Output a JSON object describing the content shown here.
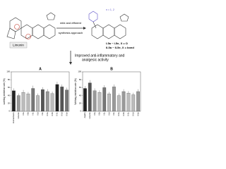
{
  "scheme": {
    "left_label": "Limonin",
    "arrow_top": "mild and efficient",
    "arrow_bottom": "synthesis approach",
    "n_label": "n = 1, 2",
    "series1": "I-5a ~ I-5e, X = O",
    "series2": "II-5a ~ II-5e, X = bond",
    "result_line1": "Improved anti-inflammatory and",
    "result_line2": "analgesic activity"
  },
  "chart_data": [
    {
      "type": "bar",
      "title": "A",
      "y_label": "swelling inhibition rate (%)",
      "categories": [
        "Indomethacin",
        "Limonin",
        "I-5a",
        "I-5b",
        "I-5c",
        "I-5d",
        "I-5e",
        "II-5a",
        "II-5b",
        "II-5c",
        "II-5d",
        "II-5e"
      ],
      "values": [
        52,
        40,
        48,
        44,
        58,
        40,
        55,
        50,
        45,
        68,
        62,
        54
      ],
      "errors": [
        6,
        5,
        6,
        5,
        7,
        5,
        6,
        6,
        5,
        7,
        6,
        6
      ],
      "colors": [
        "#222222",
        "#999999",
        "#bbbbbb",
        "#bbbbbb",
        "#777777",
        "#bbbbbb",
        "#555555",
        "#999999",
        "#bbbbbb",
        "#222222",
        "#555555",
        "#777777"
      ],
      "ylim": [
        0,
        100
      ],
      "yticks": [
        0,
        20,
        40,
        60,
        80,
        100
      ]
    },
    {
      "type": "bar",
      "title": "B",
      "y_label": "Writhing inhibition rate (%)",
      "categories": [
        "Aspirin",
        "Limonin",
        "I-5a",
        "I-5b",
        "I-5c",
        "I-5d",
        "I-5e",
        "II-5a",
        "II-5b",
        "II-5c",
        "II-5d",
        "II-5e"
      ],
      "values": [
        58,
        72,
        52,
        48,
        60,
        44,
        62,
        40,
        50,
        46,
        42,
        50
      ],
      "errors": [
        6,
        7,
        6,
        5,
        6,
        5,
        6,
        5,
        6,
        5,
        5,
        6
      ],
      "colors": [
        "#222222",
        "#555555",
        "#999999",
        "#bbbbbb",
        "#777777",
        "#bbbbbb",
        "#999999",
        "#bbbbbb",
        "#999999",
        "#bbbbbb",
        "#bbbbbb",
        "#999999"
      ],
      "ylim": [
        0,
        100
      ],
      "yticks": [
        0,
        20,
        40,
        60,
        80,
        100
      ]
    }
  ]
}
